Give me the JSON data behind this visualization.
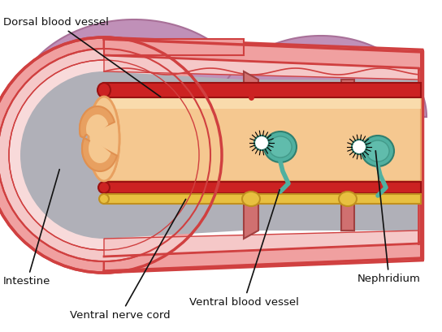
{
  "labels": {
    "dorsal_blood_vessel": "Dorsal blood vessel",
    "intestine": "Intestine",
    "ventral_nerve_cord": "Ventral nerve cord",
    "ventral_blood_vessel": "Ventral blood vessel",
    "nephridium": "Nephridium"
  },
  "colors": {
    "bg": "#ffffff",
    "body_outer": "#e06060",
    "body_fill": "#f0a0a0",
    "body_inner_pink": "#f5c8c8",
    "body_light_pink": "#f8dada",
    "coelom": "#b0b0b8",
    "coelom_light": "#c8c8d0",
    "dorsal_purple": "#c090b8",
    "dorsal_purple_dark": "#a87098",
    "intestine_fill": "#f5c890",
    "intestine_dark": "#e8a060",
    "intestine_inner": "#e09050",
    "blood_red": "#cc2222",
    "blood_dark": "#991111",
    "nerve_yellow": "#e8c040",
    "nerve_dark": "#c09020",
    "neph_teal": "#50b0a0",
    "neph_dark": "#308070",
    "neph_light": "#70c8b8",
    "septum": "#d07070",
    "septum_dark": "#a04040",
    "skin_edge": "#d04040",
    "seta_black": "#111111",
    "text_color": "#111111"
  },
  "fontsize": 9.5
}
